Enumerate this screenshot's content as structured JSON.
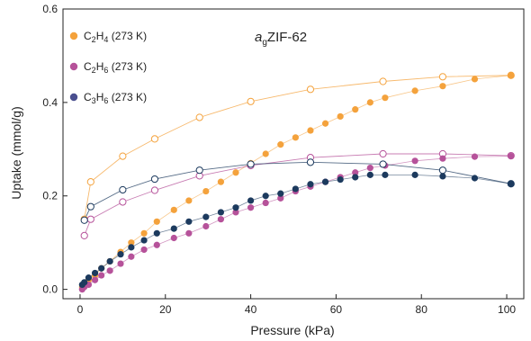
{
  "chart_data": {
    "type": "scatter",
    "title_main": "ZIF-62",
    "title_prefix": "a",
    "title_sub": "g",
    "xlabel": "Pressure (kPa)",
    "ylabel": "Uptake (mmol/g)",
    "xlim": [
      -4,
      104
    ],
    "ylim": [
      -0.02,
      0.6
    ],
    "xticks": [
      0,
      20,
      40,
      60,
      80,
      100
    ],
    "yticks": [
      0.0,
      0.2,
      0.4,
      0.6
    ],
    "ytick_labels": [
      "0.0",
      "0.2",
      "0.4",
      "0.6"
    ],
    "grid": false,
    "legend_position": "top-left",
    "series": [
      {
        "name": "C2H4 (273 K)",
        "label_base1": "C",
        "label_sub1": "2",
        "label_base2": "H",
        "label_sub2": "4",
        "label_tail": " (273 K)",
        "color": "#F4A23C",
        "adsorption": {
          "x": [
            0.5,
            1.0,
            2.0,
            3.5,
            5.0,
            7.0,
            9.5,
            12.0,
            15.0,
            18.0,
            22.0,
            25.5,
            29.5,
            33.0,
            36.5,
            40.0,
            43.5,
            47.0,
            50.5,
            54.0,
            57.5,
            61.0,
            64.5,
            68.0,
            71.5,
            78.5,
            85.0,
            92.5,
            101.0
          ],
          "y": [
            0.005,
            0.01,
            0.02,
            0.03,
            0.045,
            0.06,
            0.08,
            0.1,
            0.12,
            0.145,
            0.17,
            0.19,
            0.21,
            0.23,
            0.25,
            0.27,
            0.29,
            0.31,
            0.325,
            0.34,
            0.355,
            0.37,
            0.385,
            0.4,
            0.41,
            0.425,
            0.435,
            0.45,
            0.458
          ]
        },
        "desorption": {
          "x": [
            101.0,
            85.0,
            71.0,
            54.0,
            40.0,
            28.0,
            17.5,
            10.0,
            2.5,
            1.0
          ],
          "y": [
            0.458,
            0.455,
            0.445,
            0.428,
            0.402,
            0.368,
            0.322,
            0.285,
            0.23,
            0.15
          ]
        }
      },
      {
        "name": "C2H6 (273 K)",
        "label_base1": "C",
        "label_sub1": "2",
        "label_base2": "H",
        "label_sub2": "6",
        "label_tail": " (273 K)",
        "color": "#B6529A",
        "adsorption": {
          "x": [
            0.5,
            1.0,
            2.0,
            3.5,
            5.0,
            7.0,
            9.5,
            12.0,
            15.0,
            18.0,
            22.0,
            25.5,
            29.5,
            33.0,
            36.5,
            40.0,
            43.5,
            47.0,
            50.5,
            54.0,
            57.5,
            61.0,
            64.5,
            68.0,
            71.5,
            78.5,
            85.0,
            92.5,
            101.0
          ],
          "y": [
            0.0,
            0.005,
            0.01,
            0.02,
            0.03,
            0.04,
            0.055,
            0.07,
            0.085,
            0.095,
            0.11,
            0.12,
            0.135,
            0.15,
            0.165,
            0.175,
            0.185,
            0.195,
            0.21,
            0.22,
            0.23,
            0.24,
            0.25,
            0.26,
            0.265,
            0.275,
            0.28,
            0.284,
            0.285
          ]
        },
        "desorption": {
          "x": [
            101.0,
            85.0,
            71.0,
            54.0,
            40.0,
            28.0,
            17.5,
            10.0,
            2.5,
            1.0
          ],
          "y": [
            0.286,
            0.29,
            0.29,
            0.282,
            0.265,
            0.243,
            0.212,
            0.187,
            0.15,
            0.115
          ]
        }
      },
      {
        "name": "C3H6 (273 K)",
        "label_base1": "C",
        "label_sub1": "3",
        "label_base2": "H",
        "label_sub2": "6",
        "label_tail": " (273 K)",
        "color": "#1C3A5E",
        "color_legend": "#4A4F8F",
        "adsorption": {
          "x": [
            0.5,
            1.0,
            2.0,
            3.5,
            5.0,
            7.0,
            9.5,
            12.0,
            15.0,
            18.0,
            22.0,
            25.5,
            29.5,
            33.0,
            36.5,
            40.0,
            43.5,
            47.0,
            50.5,
            54.0,
            57.5,
            61.0,
            64.5,
            68.0,
            71.5,
            78.5,
            85.0,
            92.5,
            101.0
          ],
          "y": [
            0.01,
            0.015,
            0.025,
            0.035,
            0.045,
            0.06,
            0.075,
            0.09,
            0.105,
            0.12,
            0.13,
            0.145,
            0.155,
            0.165,
            0.175,
            0.19,
            0.2,
            0.205,
            0.215,
            0.225,
            0.23,
            0.235,
            0.24,
            0.245,
            0.245,
            0.245,
            0.242,
            0.238,
            0.226
          ]
        },
        "desorption": {
          "x": [
            101.0,
            85.0,
            71.0,
            54.0,
            40.0,
            28.0,
            17.5,
            10.0,
            2.5,
            1.0
          ],
          "y": [
            0.226,
            0.255,
            0.268,
            0.272,
            0.268,
            0.255,
            0.236,
            0.213,
            0.177,
            0.148
          ]
        }
      }
    ]
  }
}
